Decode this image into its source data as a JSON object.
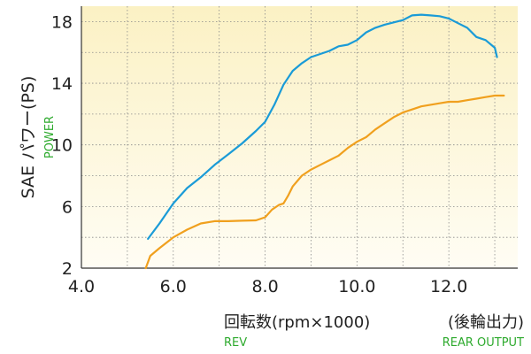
{
  "chart_data": {
    "type": "line",
    "ylabel": "SAE パワー(PS)",
    "ylabel_en": "POWER",
    "xlabel": "回転数(rpm×1000)",
    "xlabel_en": "REV",
    "xlabel_right": "(後輪出力)",
    "xlabel_right_en": "REAR OUTPUT",
    "xlim": [
      4.0,
      13.5
    ],
    "ylim": [
      2,
      19
    ],
    "xticks": [
      "4.0",
      "6.0",
      "8.0",
      "10.0",
      "12.0"
    ],
    "yticks": [
      "2",
      "6",
      "10",
      "14",
      "18"
    ],
    "grid": "dotted",
    "series": [
      {
        "color": "#1a9bd7",
        "x": [
          5.45,
          5.7,
          6.0,
          6.3,
          6.6,
          6.9,
          7.2,
          7.5,
          7.8,
          8.0,
          8.2,
          8.4,
          8.6,
          8.8,
          9.0,
          9.2,
          9.4,
          9.6,
          9.8,
          10.0,
          10.2,
          10.4,
          10.6,
          10.8,
          11.0,
          11.2,
          11.4,
          11.6,
          11.8,
          12.0,
          12.2,
          12.4,
          12.6,
          12.8,
          13.0,
          13.05
        ],
        "y": [
          3.9,
          4.9,
          6.2,
          7.2,
          7.9,
          8.7,
          9.4,
          10.1,
          10.9,
          11.5,
          12.6,
          13.9,
          14.8,
          15.3,
          15.7,
          15.9,
          16.1,
          16.4,
          16.5,
          16.8,
          17.3,
          17.6,
          17.8,
          17.95,
          18.1,
          18.4,
          18.45,
          18.4,
          18.35,
          18.2,
          17.9,
          17.6,
          17.0,
          16.8,
          16.3,
          15.7
        ]
      },
      {
        "color": "#f0a01e",
        "x": [
          5.4,
          5.5,
          5.7,
          6.0,
          6.3,
          6.6,
          6.9,
          7.2,
          7.5,
          7.8,
          8.0,
          8.15,
          8.3,
          8.4,
          8.5,
          8.6,
          8.8,
          9.0,
          9.2,
          9.4,
          9.6,
          9.8,
          10.0,
          10.2,
          10.4,
          10.6,
          10.8,
          11.0,
          11.2,
          11.4,
          11.6,
          11.8,
          12.0,
          12.2,
          12.4,
          12.6,
          12.8,
          13.0,
          13.2
        ],
        "y": [
          2.0,
          2.8,
          3.3,
          4.0,
          4.5,
          4.9,
          5.05,
          5.05,
          5.08,
          5.1,
          5.3,
          5.8,
          6.1,
          6.2,
          6.7,
          7.3,
          8.0,
          8.4,
          8.7,
          9.0,
          9.3,
          9.8,
          10.2,
          10.5,
          11.0,
          11.4,
          11.8,
          12.1,
          12.3,
          12.5,
          12.6,
          12.7,
          12.8,
          12.8,
          12.9,
          13.0,
          13.1,
          13.2,
          13.2
        ]
      }
    ],
    "colors": {
      "plot_bg_top": "#fbf1c4",
      "plot_bg_bottom": "#fffdf4",
      "grid": "#8a8a8a",
      "axis": "#333333",
      "label_en": "#2eaa2e"
    }
  }
}
